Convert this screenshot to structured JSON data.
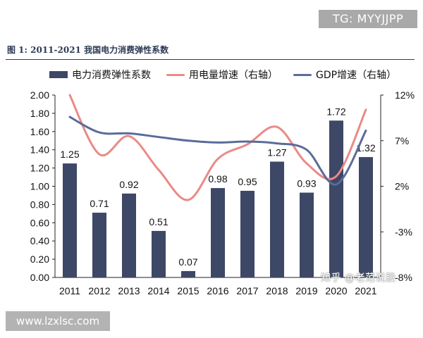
{
  "header": {
    "badge": "TG: MYYJJPP"
  },
  "figure": {
    "title": "图 1:  2011-2021 我国电力消费弹性系数"
  },
  "watermarks": {
    "bottom_right": "知乎 @老范说股",
    "bottom_left": "www.lzxlsc.com"
  },
  "colors": {
    "bar": "#3d4766",
    "line_power": "#ea8a86",
    "line_gdp": "#5a6c9a",
    "text": "#111111",
    "title": "#2d3a55"
  },
  "chart_data": {
    "type": "bar",
    "title": "2011-2021 我国电力消费弹性系数",
    "categories": [
      "2011",
      "2012",
      "2013",
      "2014",
      "2015",
      "2016",
      "2017",
      "2018",
      "2019",
      "2020",
      "2021"
    ],
    "series": [
      {
        "name": "电力消费弹性系数",
        "kind": "bar",
        "axis": "left",
        "values": [
          1.25,
          0.71,
          0.92,
          0.51,
          0.07,
          0.98,
          0.95,
          1.27,
          0.93,
          1.72,
          1.32
        ],
        "labels": [
          "1.25",
          "0.71",
          "0.92",
          "0.51",
          "0.07",
          "0.98",
          "0.95",
          "1.27",
          "0.93",
          "1.72",
          "1.32"
        ]
      },
      {
        "name": "用电量增速（右轴）",
        "kind": "line",
        "axis": "right",
        "values": [
          12.0,
          5.5,
          7.5,
          3.8,
          0.5,
          5.0,
          6.6,
          8.5,
          4.5,
          3.1,
          10.4
        ]
      },
      {
        "name": "GDP增速（右轴）",
        "kind": "line",
        "axis": "right",
        "values": [
          9.6,
          7.9,
          7.8,
          7.4,
          7.0,
          6.8,
          6.9,
          6.7,
          6.0,
          2.2,
          8.1
        ]
      }
    ],
    "y_left": {
      "min": 0,
      "max": 2.0,
      "ticks": [
        "0.00",
        "0.20",
        "0.40",
        "0.60",
        "0.80",
        "1.00",
        "1.20",
        "1.40",
        "1.60",
        "1.80",
        "2.00"
      ]
    },
    "y_right": {
      "min": -8,
      "max": 12,
      "ticks": [
        "-8%",
        "-3%",
        "2%",
        "7%",
        "12%"
      ],
      "tick_values": [
        -8,
        -3,
        2,
        7,
        12
      ]
    },
    "legend_position": "top",
    "grid": false
  }
}
